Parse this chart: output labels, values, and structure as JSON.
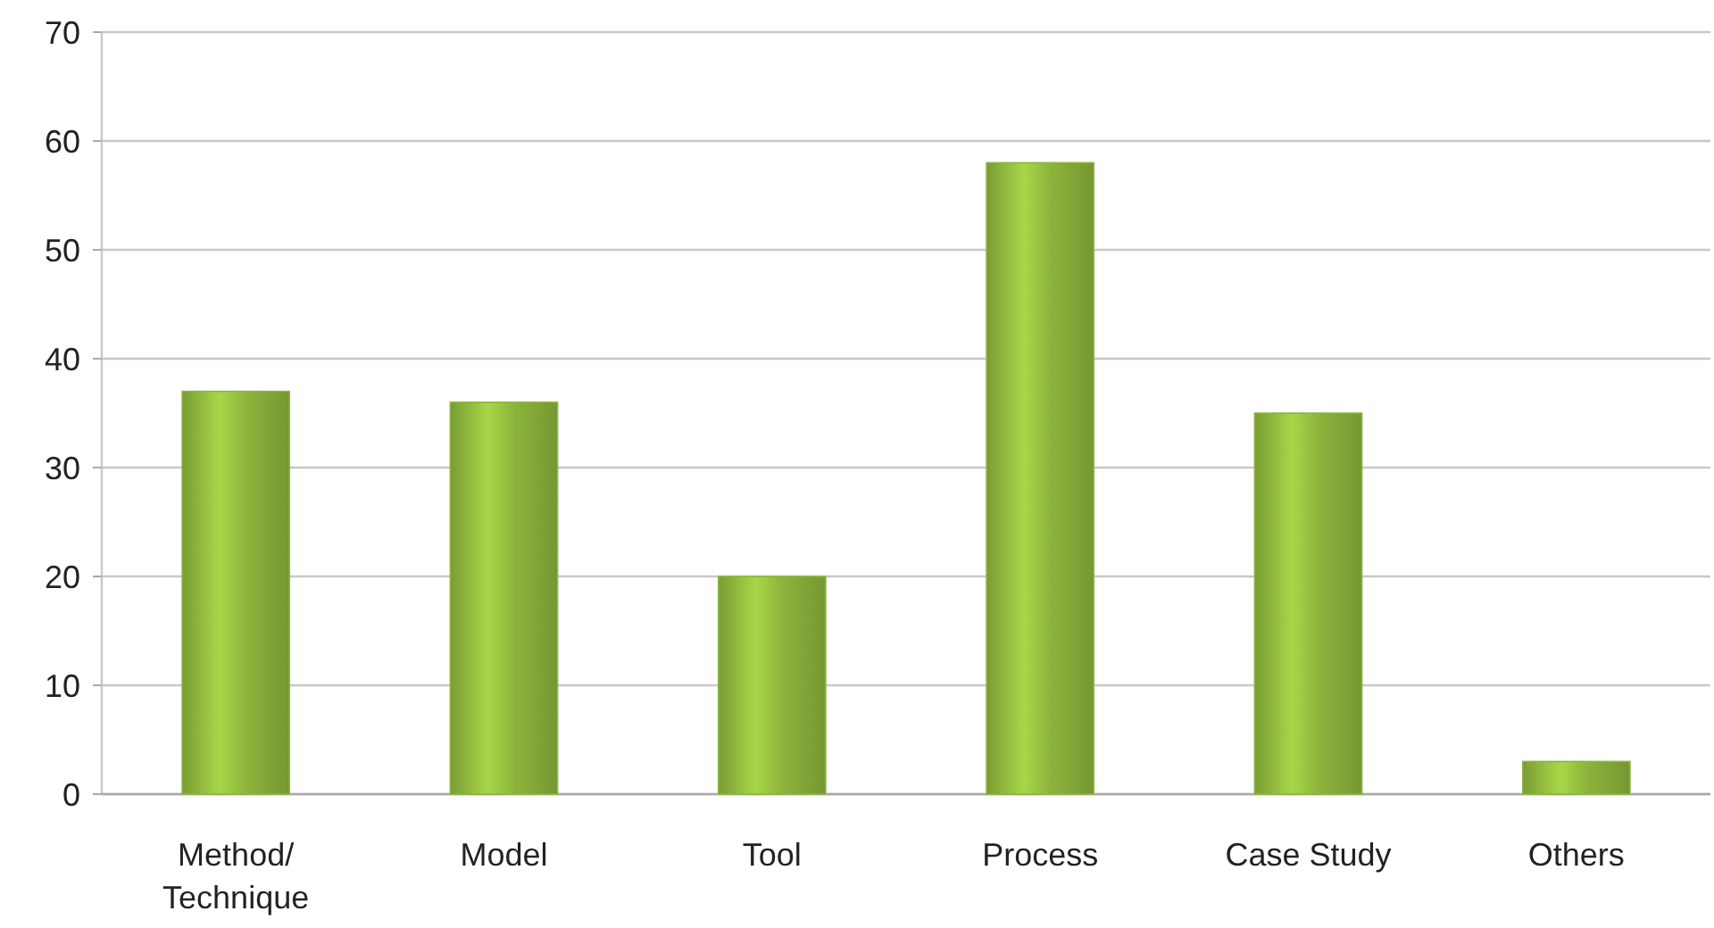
{
  "chart_data": {
    "type": "bar",
    "categories": [
      "Method/Technique",
      "Model",
      "Tool",
      "Process",
      "Case Study",
      "Others"
    ],
    "values": [
      37,
      36,
      20,
      58,
      35,
      3
    ],
    "color": "#8cb43c",
    "ylim": [
      0,
      70
    ],
    "yticks": [
      0,
      10,
      20,
      30,
      40,
      50,
      60,
      70
    ],
    "grid": "y"
  }
}
